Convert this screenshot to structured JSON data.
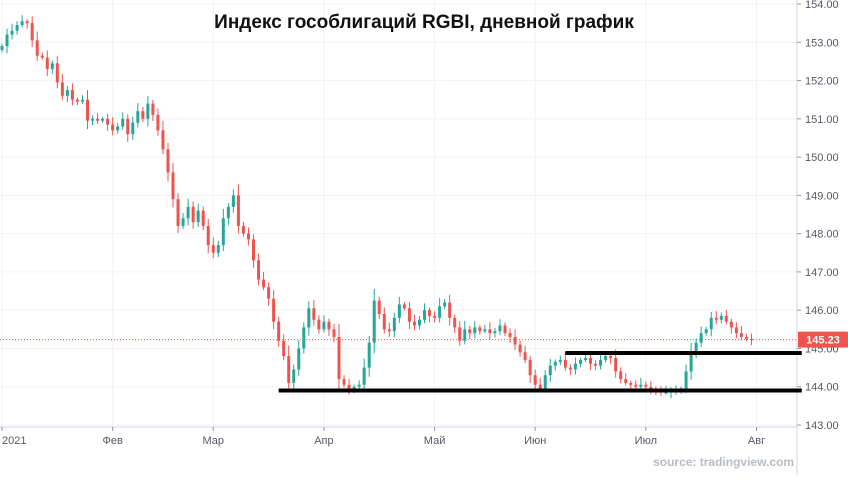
{
  "chart_data": {
    "type": "candlestick",
    "title": "Индекс гособлигаций RGBI, дневной график",
    "source": "source: tradingview.com",
    "xlabel": "",
    "ylabel": "",
    "ylim": [
      143.0,
      154.0
    ],
    "y_ticks": [
      {
        "value": 143,
        "label": "143.00"
      },
      {
        "value": 144,
        "label": "144.00"
      },
      {
        "value": 145,
        "label": "145.00"
      },
      {
        "value": 146,
        "label": "146.00"
      },
      {
        "value": 147,
        "label": "147.00"
      },
      {
        "value": 148,
        "label": "148.00"
      },
      {
        "value": 149,
        "label": "149.00"
      },
      {
        "value": 150,
        "label": "150.00"
      },
      {
        "value": 151,
        "label": "151.00"
      },
      {
        "value": 152,
        "label": "152.00"
      },
      {
        "value": 153,
        "label": "153.00"
      },
      {
        "value": 154,
        "label": "154.00"
      }
    ],
    "x_ticks": [
      {
        "index": 0,
        "label": "2021"
      },
      {
        "index": 22,
        "label": "Фев"
      },
      {
        "index": 42,
        "label": "Мар"
      },
      {
        "index": 64,
        "label": "Апр"
      },
      {
        "index": 86,
        "label": "Май"
      },
      {
        "index": 106,
        "label": "Июн"
      },
      {
        "index": 128,
        "label": "Июл"
      },
      {
        "index": 150,
        "label": "Авг"
      }
    ],
    "last_price": {
      "value": 145.23,
      "label": "145.23"
    },
    "support_lines": [
      {
        "value": 143.9,
        "from_index": 55,
        "to_index": 159
      },
      {
        "value": 144.88,
        "from_index": 112,
        "to_index": 159
      }
    ],
    "colors": {
      "up": "#26a69a",
      "down": "#ef5350",
      "last_price": "#ef5350",
      "support": "#000000",
      "grid": "#f0f3fa"
    },
    "close": [
      152.9,
      153.2,
      153.3,
      153.45,
      153.55,
      153.5,
      153.05,
      152.65,
      152.6,
      152.3,
      152.45,
      151.95,
      151.6,
      151.75,
      151.5,
      151.45,
      151.5,
      150.95,
      151.0,
      150.95,
      151.0,
      150.85,
      150.7,
      150.8,
      151.0,
      150.6,
      150.9,
      151.2,
      151.0,
      151.4,
      151.1,
      150.7,
      150.2,
      149.6,
      148.9,
      148.2,
      148.4,
      148.7,
      148.3,
      148.6,
      148.2,
      147.7,
      147.5,
      147.7,
      148.4,
      148.7,
      149.0,
      148.2,
      148.0,
      147.85,
      147.3,
      146.8,
      146.6,
      146.3,
      145.7,
      145.2,
      144.8,
      144.1,
      144.45,
      145.0,
      145.55,
      146.05,
      145.75,
      145.5,
      145.7,
      145.5,
      145.3,
      144.2,
      144.05,
      143.95,
      144.0,
      144.05,
      144.5,
      145.15,
      146.25,
      145.9,
      145.5,
      145.45,
      145.8,
      146.15,
      146.05,
      145.7,
      145.6,
      145.75,
      146.0,
      145.85,
      145.8,
      146.1,
      146.2,
      145.8,
      145.55,
      145.2,
      145.5,
      145.4,
      145.55,
      145.45,
      145.5,
      145.4,
      145.45,
      145.6,
      145.4,
      145.3,
      145.1,
      144.9,
      144.7,
      144.3,
      144.05,
      143.95,
      144.3,
      144.55,
      144.65,
      144.7,
      144.5,
      144.45,
      144.6,
      144.7,
      144.75,
      144.6,
      144.55,
      144.7,
      144.8,
      144.75,
      144.4,
      144.2,
      144.1,
      144.05,
      144.0,
      144.05,
      144.0,
      143.95,
      143.9,
      143.85,
      143.85,
      143.9,
      143.9,
      143.95,
      144.4,
      144.9,
      145.15,
      145.4,
      145.5,
      145.8,
      145.75,
      145.85,
      145.7,
      145.55,
      145.4,
      145.3,
      145.25,
      145.23
    ],
    "open": [
      152.8,
      152.9,
      153.2,
      153.3,
      153.45,
      153.55,
      153.5,
      153.05,
      152.65,
      152.6,
      152.3,
      152.45,
      151.95,
      151.6,
      151.75,
      151.5,
      151.45,
      151.5,
      150.95,
      151.0,
      150.95,
      151.0,
      150.85,
      150.7,
      150.8,
      151.0,
      150.6,
      150.9,
      151.2,
      151.0,
      151.4,
      151.1,
      150.7,
      150.2,
      149.6,
      148.9,
      148.2,
      148.4,
      148.7,
      148.3,
      148.6,
      148.2,
      147.7,
      147.5,
      147.7,
      148.4,
      148.7,
      149.0,
      148.2,
      148.0,
      147.85,
      147.3,
      146.8,
      146.6,
      146.3,
      145.7,
      145.2,
      144.8,
      144.1,
      144.45,
      145.0,
      145.55,
      146.05,
      145.75,
      145.5,
      145.7,
      145.5,
      145.3,
      144.2,
      144.05,
      143.95,
      144.0,
      144.05,
      144.5,
      145.15,
      146.25,
      145.9,
      145.5,
      145.45,
      145.8,
      146.15,
      146.05,
      145.7,
      145.6,
      145.75,
      146.0,
      145.85,
      145.8,
      146.1,
      146.2,
      145.8,
      145.55,
      145.2,
      145.5,
      145.4,
      145.55,
      145.45,
      145.5,
      145.4,
      145.45,
      145.6,
      145.4,
      145.3,
      145.1,
      144.9,
      144.7,
      144.3,
      144.05,
      143.95,
      144.3,
      144.55,
      144.65,
      144.7,
      144.5,
      144.45,
      144.6,
      144.7,
      144.75,
      144.6,
      144.55,
      144.7,
      144.8,
      144.75,
      144.4,
      144.2,
      144.1,
      144.05,
      144.0,
      144.05,
      144.0,
      143.95,
      143.9,
      143.85,
      143.85,
      143.9,
      143.9,
      143.95,
      144.4,
      144.9,
      145.15,
      145.4,
      145.5,
      145.8,
      145.75,
      145.85,
      145.7,
      145.55,
      145.4,
      145.3,
      145.25
    ]
  }
}
